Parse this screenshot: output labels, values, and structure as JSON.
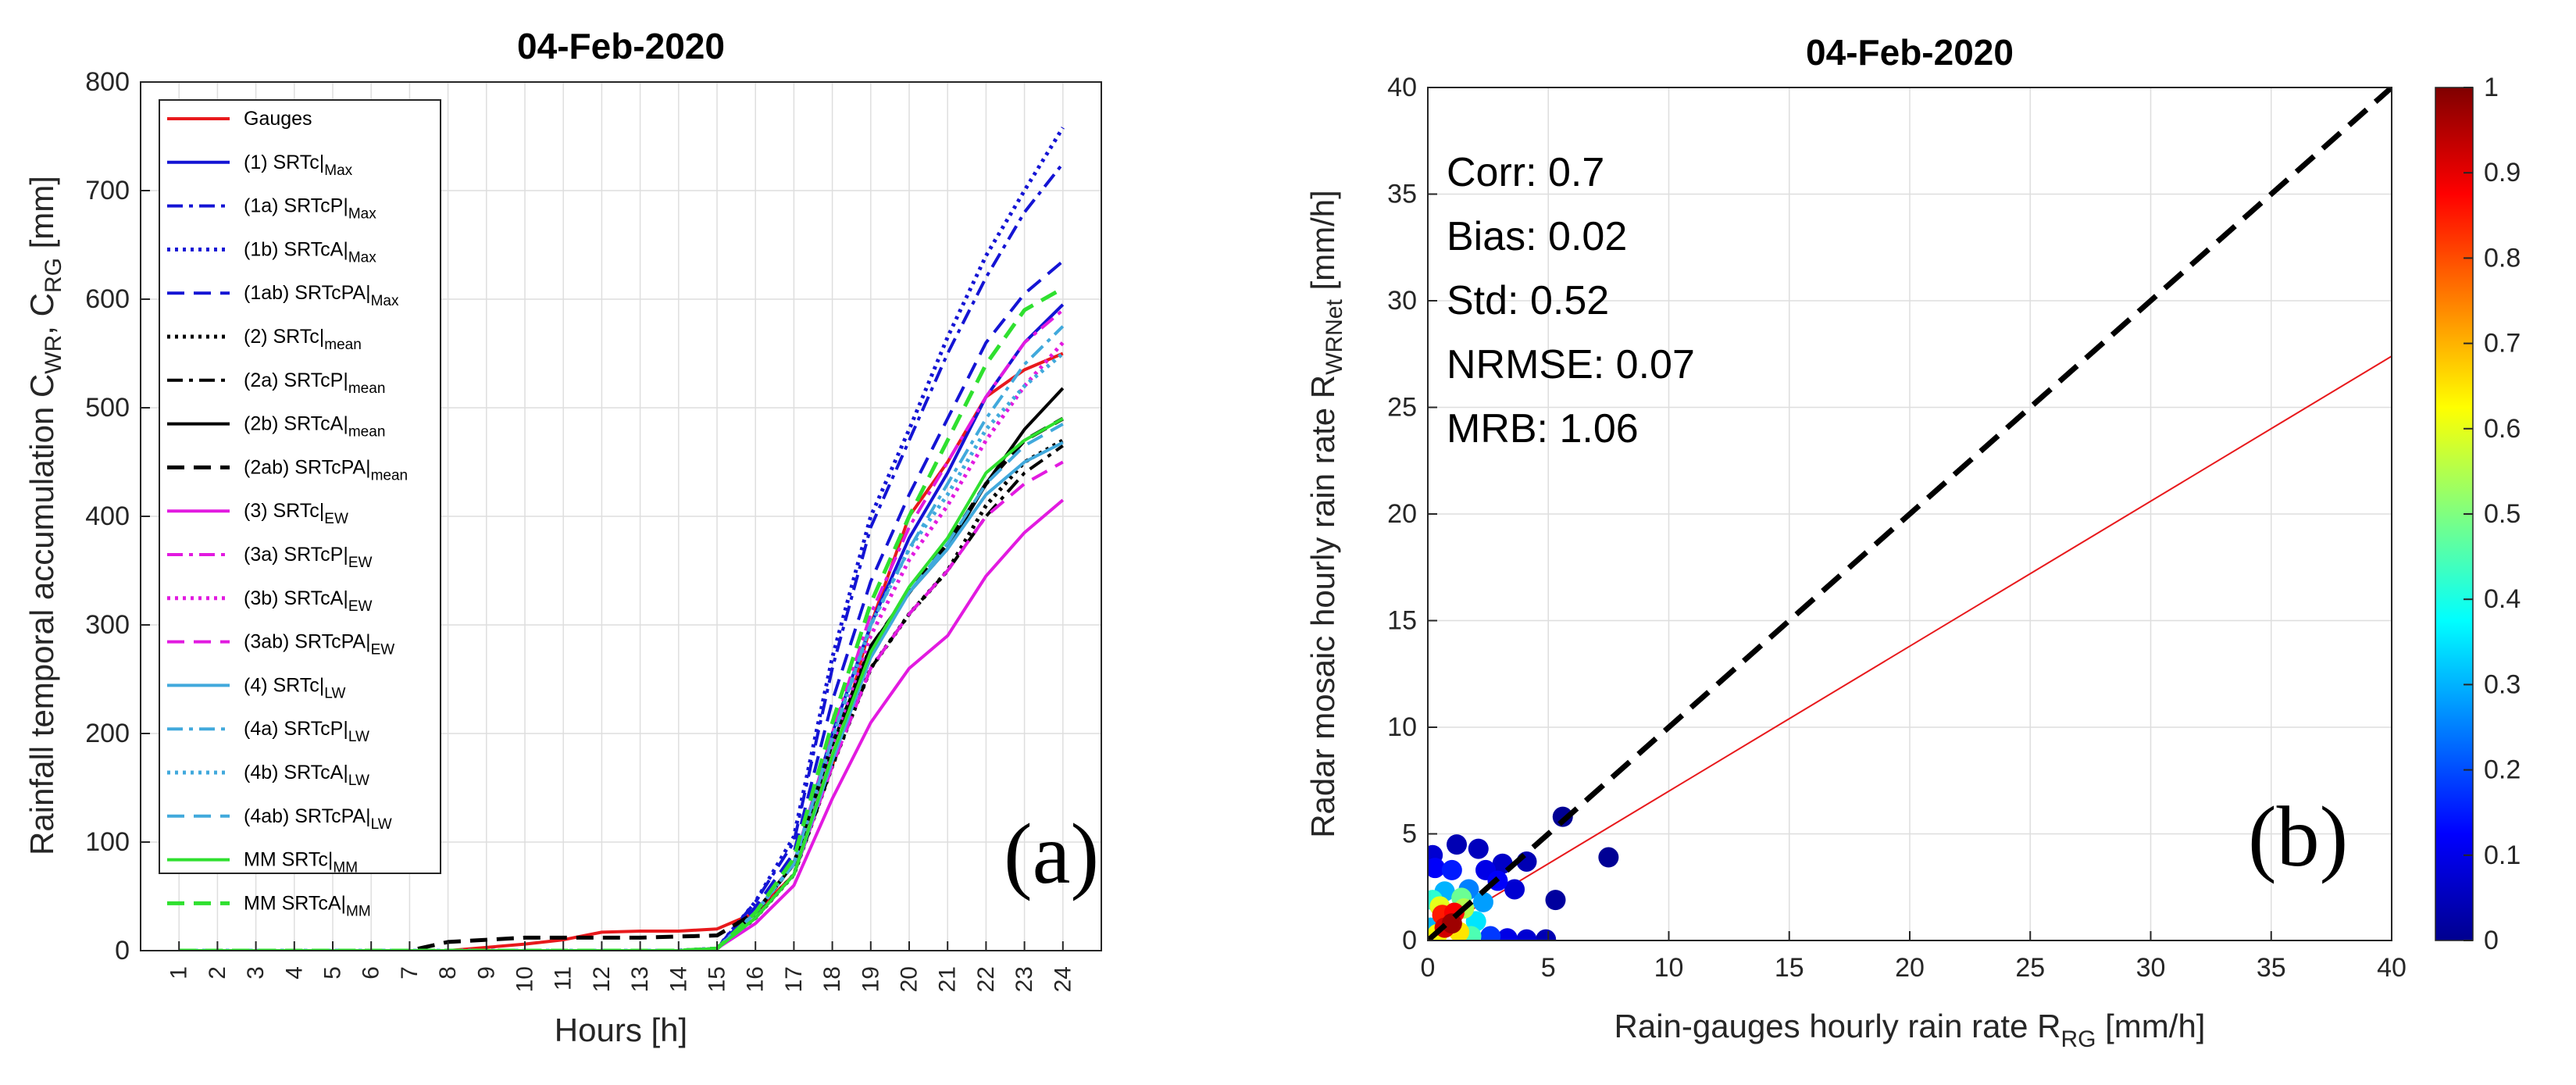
{
  "chart_data": [
    {
      "type": "line",
      "title": "04-Feb-2020",
      "xlabel": "Hours [h]",
      "ylabel": "Rainfall temporal accumulation C_WR, C_RG [mm]",
      "ylabel_parts": {
        "main": "Rainfall temporal accumulation C",
        "sub1": "WR",
        "sep": ", C",
        "sub2": "RG",
        "unit": " [mm]"
      },
      "xlim": [
        0,
        25
      ],
      "ylim": [
        0,
        800
      ],
      "x_ticks": [
        "1",
        "2",
        "3",
        "4",
        "5",
        "6",
        "7",
        "8",
        "9",
        "10",
        "11",
        "12",
        "13",
        "14",
        "15",
        "16",
        "17",
        "18",
        "19",
        "20",
        "21",
        "22",
        "23",
        "24"
      ],
      "y_ticks": [
        "0",
        "100",
        "200",
        "300",
        "400",
        "500",
        "600",
        "700",
        "800"
      ],
      "grid": true,
      "legend_position": "top-left",
      "panel_label": "(a)",
      "x": [
        1,
        2,
        3,
        4,
        5,
        6,
        7,
        8,
        9,
        10,
        11,
        12,
        13,
        14,
        15,
        16,
        17,
        18,
        19,
        20,
        21,
        22,
        23,
        24
      ],
      "series": [
        {
          "name": "Gauges",
          "prefix": "",
          "base": "Gauges",
          "sub": "",
          "color": "#e8191c",
          "dash": "",
          "width": 4,
          "values": [
            0,
            0,
            0,
            0,
            0,
            0,
            0,
            0,
            3,
            6,
            10,
            17,
            18,
            18,
            20,
            35,
            70,
            170,
            300,
            400,
            450,
            510,
            535,
            550
          ]
        },
        {
          "name": "(1) SRTc|Max",
          "prefix": "(1) ",
          "base": "SRTc|",
          "sub": "Max",
          "color": "#1414d4",
          "dash": "",
          "width": 4,
          "values": [
            0,
            0,
            0,
            0,
            0,
            0,
            0,
            0,
            0,
            0,
            0,
            0,
            0,
            0,
            2,
            35,
            80,
            200,
            300,
            380,
            440,
            510,
            560,
            595
          ]
        },
        {
          "name": "(1a) SRTcP|Max",
          "prefix": "(1a) ",
          "base": "SRTcP|",
          "sub": "Max",
          "color": "#1414d4",
          "dash": "20,8,5,8",
          "width": 4,
          "values": [
            0,
            0,
            0,
            0,
            0,
            0,
            0,
            0,
            0,
            0,
            0,
            0,
            0,
            0,
            2,
            45,
            100,
            260,
            390,
            470,
            550,
            620,
            680,
            725
          ]
        },
        {
          "name": "(1b) SRTcA|Max",
          "prefix": "(1b) ",
          "base": "SRTcA|",
          "sub": "Max",
          "color": "#1414d4",
          "dash": "4,6",
          "width": 5,
          "values": [
            0,
            0,
            0,
            0,
            0,
            0,
            0,
            0,
            0,
            0,
            0,
            0,
            0,
            0,
            2,
            45,
            105,
            270,
            400,
            480,
            565,
            640,
            700,
            758
          ]
        },
        {
          "name": "(1ab) SRTcPA|Max",
          "prefix": "(1ab) ",
          "base": "SRTcPA|",
          "sub": "Max",
          "color": "#1414d4",
          "dash": "22,12",
          "width": 4,
          "values": [
            0,
            0,
            0,
            0,
            0,
            0,
            0,
            0,
            0,
            0,
            0,
            0,
            0,
            0,
            2,
            40,
            90,
            230,
            340,
            420,
            490,
            560,
            605,
            635
          ]
        },
        {
          "name": "(2) SRTc|mean",
          "prefix": "(2) ",
          "base": "SRTc|",
          "sub": "mean",
          "color": "#000000",
          "dash": "4,6",
          "width": 5,
          "values": [
            0,
            0,
            0,
            0,
            0,
            0,
            0,
            0,
            0,
            0,
            0,
            0,
            0,
            0,
            2,
            30,
            70,
            170,
            260,
            310,
            350,
            410,
            450,
            470
          ]
        },
        {
          "name": "(2a) SRTcP|mean",
          "prefix": "(2a) ",
          "base": "SRTcP|",
          "sub": "mean",
          "color": "#000000",
          "dash": "20,8,5,8",
          "width": 4,
          "values": [
            0,
            0,
            0,
            0,
            0,
            0,
            0,
            0,
            0,
            0,
            0,
            0,
            0,
            0,
            2,
            30,
            70,
            170,
            260,
            310,
            350,
            400,
            440,
            465
          ]
        },
        {
          "name": "(2b) SRTcA|mean",
          "prefix": "(2b) ",
          "base": "SRTcA|",
          "sub": "mean",
          "color": "#000000",
          "dash": "",
          "width": 4,
          "values": [
            0,
            0,
            0,
            0,
            0,
            0,
            0,
            0,
            0,
            0,
            0,
            0,
            0,
            0,
            2,
            35,
            80,
            190,
            280,
            330,
            370,
            430,
            480,
            518
          ]
        },
        {
          "name": "(2ab) SRTcPA|mean",
          "prefix": "(2ab) ",
          "base": "SRTcPA|",
          "sub": "mean",
          "color": "#000000",
          "dash": "22,12",
          "width": 5,
          "values": [
            0,
            0,
            0,
            0,
            0,
            0,
            0,
            8,
            10,
            12,
            12,
            12,
            12,
            13,
            14,
            35,
            80,
            190,
            280,
            330,
            375,
            430,
            470,
            490
          ]
        },
        {
          "name": "(3) SRTc|EW",
          "prefix": "(3) ",
          "base": "SRTc|",
          "sub": "EW",
          "color": "#e21ae0",
          "dash": "",
          "width": 4,
          "values": [
            0,
            0,
            0,
            0,
            0,
            0,
            0,
            0,
            0,
            0,
            0,
            0,
            0,
            0,
            2,
            25,
            60,
            140,
            210,
            260,
            290,
            345,
            385,
            415
          ]
        },
        {
          "name": "(3a) SRTcP|EW",
          "prefix": "(3a) ",
          "base": "SRTcP|",
          "sub": "EW",
          "color": "#e21ae0",
          "dash": "20,8,5,8",
          "width": 4,
          "values": [
            0,
            0,
            0,
            0,
            0,
            0,
            0,
            0,
            0,
            0,
            0,
            0,
            0,
            0,
            2,
            35,
            80,
            200,
            310,
            390,
            450,
            510,
            560,
            590
          ]
        },
        {
          "name": "(3b) SRTcA|EW",
          "prefix": "(3b) ",
          "base": "SRTcA|",
          "sub": "EW",
          "color": "#e21ae0",
          "dash": "4,6",
          "width": 5,
          "values": [
            0,
            0,
            0,
            0,
            0,
            0,
            0,
            0,
            0,
            0,
            0,
            0,
            0,
            0,
            2,
            35,
            80,
            190,
            290,
            360,
            410,
            470,
            520,
            560
          ]
        },
        {
          "name": "(3ab) SRTcPA|EW",
          "prefix": "(3ab) ",
          "base": "SRTcPA|",
          "sub": "EW",
          "color": "#e21ae0",
          "dash": "22,12",
          "width": 4,
          "values": [
            0,
            0,
            0,
            0,
            0,
            0,
            0,
            0,
            0,
            0,
            0,
            0,
            0,
            0,
            2,
            30,
            70,
            170,
            260,
            310,
            350,
            400,
            430,
            450
          ]
        },
        {
          "name": "(4) SRTc|LW",
          "prefix": "(4) ",
          "base": "SRTc|",
          "sub": "LW",
          "color": "#41a9dc",
          "dash": "",
          "width": 4,
          "values": [
            0,
            0,
            0,
            0,
            0,
            0,
            0,
            0,
            0,
            0,
            0,
            0,
            0,
            0,
            2,
            30,
            70,
            175,
            270,
            330,
            370,
            420,
            450,
            468
          ]
        },
        {
          "name": "(4a) SRTcP|LW",
          "prefix": "(4a) ",
          "base": "SRTcP|",
          "sub": "LW",
          "color": "#41a9dc",
          "dash": "20,8,5,8",
          "width": 4,
          "values": [
            0,
            0,
            0,
            0,
            0,
            0,
            0,
            0,
            0,
            0,
            0,
            0,
            0,
            0,
            2,
            35,
            80,
            195,
            300,
            370,
            430,
            490,
            540,
            575
          ]
        },
        {
          "name": "(4b) SRTcA|LW",
          "prefix": "(4b) ",
          "base": "SRTcA|",
          "sub": "LW",
          "color": "#41a9dc",
          "dash": "4,6",
          "width": 5,
          "values": [
            0,
            0,
            0,
            0,
            0,
            0,
            0,
            0,
            0,
            0,
            0,
            0,
            0,
            0,
            2,
            35,
            80,
            195,
            300,
            370,
            420,
            480,
            520,
            550
          ]
        },
        {
          "name": "(4ab) SRTcPA|LW",
          "prefix": "(4ab) ",
          "base": "SRTcPA|",
          "sub": "LW",
          "color": "#41a9dc",
          "dash": "22,12",
          "width": 4,
          "values": [
            0,
            0,
            0,
            0,
            0,
            0,
            0,
            0,
            0,
            0,
            0,
            0,
            0,
            0,
            2,
            30,
            70,
            180,
            270,
            330,
            375,
            430,
            465,
            485
          ]
        },
        {
          "name": "MM SRTc|MM",
          "prefix": "MM ",
          "base": "SRTc|",
          "sub": "MM",
          "color": "#2fe02f",
          "dash": "",
          "width": 4,
          "values": [
            0,
            0,
            0,
            0,
            0,
            0,
            0,
            0,
            0,
            0,
            0,
            0,
            0,
            0,
            2,
            30,
            70,
            180,
            275,
            335,
            380,
            440,
            470,
            490
          ]
        },
        {
          "name": "MM SRTcA|MM",
          "prefix": "MM ",
          "base": "SRTcA|",
          "sub": "MM",
          "color": "#2fe02f",
          "dash": "22,12",
          "width": 5,
          "values": [
            0,
            0,
            0,
            0,
            0,
            0,
            0,
            0,
            0,
            0,
            0,
            0,
            0,
            0,
            2,
            35,
            85,
            210,
            320,
            400,
            470,
            540,
            590,
            610
          ]
        }
      ]
    },
    {
      "type": "scatter",
      "title": "04-Feb-2020",
      "xlabel": "Rain-gauges hourly rain rate R_RG [mm/h]",
      "xlabel_parts": {
        "main": "Rain-gauges hourly rain rate R",
        "sub": "RG",
        "unit": " [mm/h]"
      },
      "ylabel": "Radar mosaic hourly rain rate R_WRNet [mm/h]",
      "ylabel_parts": {
        "main": "Radar mosaic hourly rain rate R",
        "sub": "WRNet",
        "unit": " [mm/h]"
      },
      "xlim": [
        0,
        40
      ],
      "ylim": [
        0,
        40
      ],
      "x_ticks": [
        "0",
        "5",
        "10",
        "15",
        "20",
        "25",
        "30",
        "35",
        "40"
      ],
      "y_ticks": [
        "0",
        "5",
        "10",
        "15",
        "20",
        "25",
        "30",
        "35",
        "40"
      ],
      "grid": true,
      "panel_label": "(b)",
      "stats": [
        "Corr: 0.7",
        "Bias: 0.02",
        "Std: 0.52",
        "NRMSE: 0.07",
        "MRB: 1.06"
      ],
      "reference_line": {
        "name": "1:1",
        "slope": 1,
        "intercept": 0,
        "color": "#000000",
        "style": "dashed"
      },
      "regression_line": {
        "slope": 0.68,
        "intercept": 0.2,
        "color": "#e8191c"
      },
      "colorbar": {
        "min": 0,
        "max": 1,
        "ticks": [
          "0",
          "0.1",
          "0.2",
          "0.3",
          "0.4",
          "0.5",
          "0.6",
          "0.7",
          "0.8",
          "0.9",
          "1"
        ]
      },
      "points": [
        {
          "x": 0.2,
          "y": 4.0,
          "d": 0.08
        },
        {
          "x": 1.2,
          "y": 4.5,
          "d": 0.05
        },
        {
          "x": 2.1,
          "y": 4.3,
          "d": 0.06
        },
        {
          "x": 0.3,
          "y": 3.4,
          "d": 0.12
        },
        {
          "x": 1.0,
          "y": 3.3,
          "d": 0.15
        },
        {
          "x": 2.4,
          "y": 3.3,
          "d": 0.1
        },
        {
          "x": 3.1,
          "y": 3.6,
          "d": 0.07
        },
        {
          "x": 4.1,
          "y": 3.7,
          "d": 0.05
        },
        {
          "x": 5.6,
          "y": 5.8,
          "d": 0.02
        },
        {
          "x": 7.5,
          "y": 3.9,
          "d": 0.02
        },
        {
          "x": 5.3,
          "y": 1.9,
          "d": 0.03
        },
        {
          "x": 3.6,
          "y": 2.4,
          "d": 0.08
        },
        {
          "x": 2.9,
          "y": 2.8,
          "d": 0.12
        },
        {
          "x": 2.6,
          "y": 0.2,
          "d": 0.18
        },
        {
          "x": 3.3,
          "y": 0.1,
          "d": 0.1
        },
        {
          "x": 4.1,
          "y": 0.05,
          "d": 0.08
        },
        {
          "x": 4.9,
          "y": 0.05,
          "d": 0.05
        },
        {
          "x": 0.1,
          "y": 0.6,
          "d": 0.3
        },
        {
          "x": 2.0,
          "y": 0.9,
          "d": 0.35
        },
        {
          "x": 2.3,
          "y": 1.8,
          "d": 0.28
        },
        {
          "x": 1.7,
          "y": 2.4,
          "d": 0.25
        },
        {
          "x": 0.7,
          "y": 2.3,
          "d": 0.3
        },
        {
          "x": 0.2,
          "y": 1.9,
          "d": 0.42
        },
        {
          "x": 1.8,
          "y": 0.2,
          "d": 0.45
        },
        {
          "x": 1.4,
          "y": 2.0,
          "d": 0.48
        },
        {
          "x": 0.4,
          "y": 0.3,
          "d": 0.62
        },
        {
          "x": 1.5,
          "y": 1.5,
          "d": 0.55
        },
        {
          "x": 0.5,
          "y": 1.6,
          "d": 0.6
        },
        {
          "x": 1.3,
          "y": 0.4,
          "d": 0.65
        },
        {
          "x": 0.6,
          "y": 1.2,
          "d": 0.85
        },
        {
          "x": 1.1,
          "y": 1.3,
          "d": 0.88
        },
        {
          "x": 0.7,
          "y": 0.6,
          "d": 0.92
        },
        {
          "x": 1.0,
          "y": 0.8,
          "d": 0.97
        }
      ]
    }
  ]
}
